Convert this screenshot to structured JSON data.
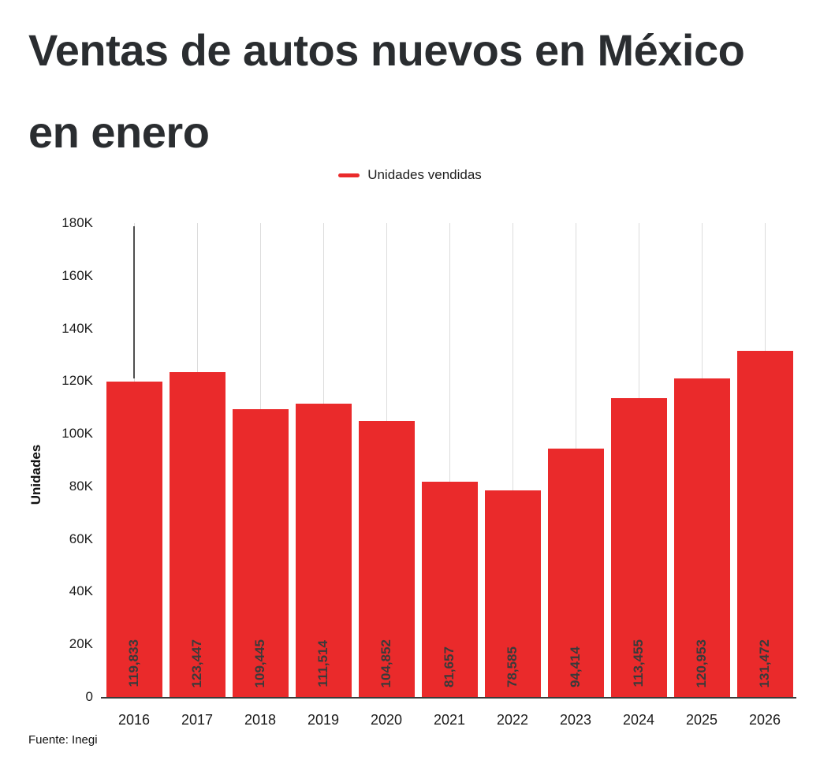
{
  "title": "Ventas de autos nuevos en México en enero",
  "source": "Fuente: Inegi",
  "legend": {
    "label": "Unidades vendidas"
  },
  "colors": {
    "bar": "#ea2a2b",
    "grid": "#dcdcdc",
    "axis": "#3a3a3a",
    "text": "#1c1c1c"
  },
  "chart_data": {
    "type": "bar",
    "title": "Ventas de autos nuevos en México en enero",
    "series_name": "Unidades vendidas",
    "categories": [
      "2016",
      "2017",
      "2018",
      "2019",
      "2020",
      "2021",
      "2022",
      "2023",
      "2024",
      "2025",
      "2026"
    ],
    "values": [
      119833,
      123447,
      109445,
      111514,
      104852,
      81657,
      78585,
      94414,
      113455,
      120953,
      131472
    ],
    "value_labels": [
      "119,833",
      "123,447",
      "109,445",
      "111,514",
      "104,852",
      "81,657",
      "78,585",
      "94,414",
      "113,455",
      "120,953",
      "131,472"
    ],
    "xlabel": "",
    "ylabel": "Unidades",
    "ylim": [
      0,
      180000
    ],
    "yticks": [
      {
        "value": 0,
        "label": "0"
      },
      {
        "value": 20000,
        "label": "20K"
      },
      {
        "value": 40000,
        "label": "40K"
      },
      {
        "value": 60000,
        "label": "60K"
      },
      {
        "value": 80000,
        "label": "80K"
      },
      {
        "value": 100000,
        "label": "100K"
      },
      {
        "value": 120000,
        "label": "120K"
      },
      {
        "value": 140000,
        "label": "140K"
      },
      {
        "value": 160000,
        "label": "160K"
      },
      {
        "value": 180000,
        "label": "180K"
      }
    ],
    "grid": "vertical",
    "legend_position": "top"
  }
}
